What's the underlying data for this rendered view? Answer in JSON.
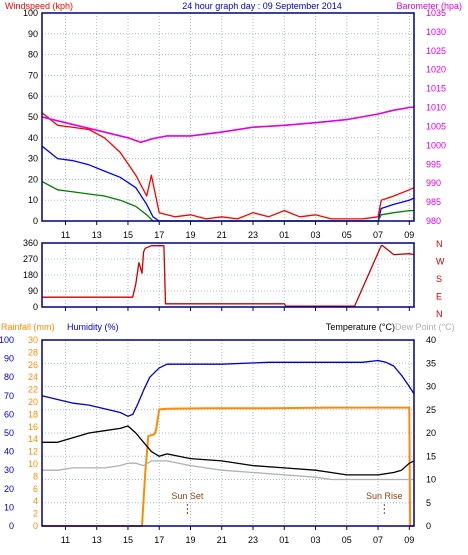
{
  "colors": {
    "background": "#ffffff",
    "frame": "#000080",
    "grid": "#a8b8d8",
    "speed_avg": "#0000ff",
    "speed_gust": "#ff0000",
    "speed_low": "#008000",
    "barometer": "#e000e0",
    "direction": "#cc0000",
    "rainfall": "#ff8c00",
    "humidity": "#0000cc",
    "temperature": "#000000",
    "dewpoint": "#b0b0b0",
    "event": "#8b4513"
  },
  "chart_data": [
    {
      "type": "line",
      "title": "24 hour graph day : 09 September 2014",
      "ylabel_left": "Windspeed (kph)",
      "ylabel_right": "Barometer (hpa)",
      "x_tick_labels": [
        "11",
        "13",
        "15",
        "17",
        "19",
        "21",
        "23",
        "01",
        "03",
        "05",
        "07",
        "09"
      ],
      "y_left_ticks": [
        "0",
        "10",
        "20",
        "30",
        "40",
        "50",
        "60",
        "70",
        "80",
        "90",
        "100"
      ],
      "y_right_ticks": [
        "980",
        "985",
        "990",
        "995",
        "1000",
        "1005",
        "1010",
        "1015",
        "1020",
        "1025",
        "1030",
        "1035"
      ],
      "ylim_left": [
        0,
        100
      ],
      "ylim_right": [
        980,
        1035
      ],
      "xlim_hours": [
        9.5,
        33.3
      ],
      "series": [
        {
          "key": "gust",
          "color": "speed_gust",
          "x": [
            9.5,
            10.5,
            11.5,
            12.5,
            13.5,
            14.5,
            15.5,
            16.2,
            16.5,
            17.0,
            18.0,
            19.0,
            20.0,
            21.0,
            22.0,
            23.0,
            24.0,
            25.0,
            26.0,
            27.0,
            28.0,
            29.0,
            30.0,
            31.0,
            31.2,
            32.0,
            33.0,
            33.3
          ],
          "y": [
            52,
            46,
            45,
            44,
            40,
            33,
            22,
            12,
            22,
            4,
            2,
            3,
            1,
            2,
            1,
            4,
            2,
            5,
            2,
            3,
            1,
            1,
            1,
            2,
            10,
            12,
            15,
            16
          ]
        },
        {
          "key": "average",
          "color": "speed_avg",
          "x": [
            9.5,
            10.5,
            11.5,
            12.5,
            13.5,
            14.5,
            15.5,
            16.2,
            16.6,
            17.0,
            19.0,
            21.0,
            23.0,
            25.0,
            27.0,
            29.0,
            31.0,
            31.2,
            32.0,
            33.0,
            33.3
          ],
          "y": [
            36,
            30,
            29,
            27,
            24,
            21,
            16,
            8,
            2,
            0,
            0,
            0,
            0,
            0,
            0,
            0,
            0,
            6,
            8,
            10,
            11
          ]
        },
        {
          "key": "low",
          "color": "speed_low",
          "x": [
            9.5,
            10.5,
            11.5,
            12.5,
            13.5,
            14.5,
            15.5,
            16.2,
            16.6,
            17.0,
            19.0,
            21.0,
            23.0,
            25.0,
            27.0,
            29.0,
            31.0,
            31.2,
            32.0,
            33.0,
            33.3
          ],
          "y": [
            19,
            15,
            14,
            13,
            12,
            10,
            7,
            3,
            0,
            0,
            0,
            0,
            0,
            0,
            0,
            0,
            0,
            3,
            4,
            5,
            5
          ]
        },
        {
          "key": "barometer",
          "axis": "right",
          "color": "barometer",
          "x": [
            9.5,
            11.0,
            13.0,
            15.0,
            15.8,
            16.6,
            17.5,
            19.0,
            21.0,
            23.0,
            25.0,
            27.0,
            29.0,
            31.0,
            32.0,
            33.0,
            33.3
          ],
          "y": [
            1007.5,
            1006.0,
            1004.0,
            1002.0,
            1000.8,
            1001.8,
            1002.5,
            1002.5,
            1003.5,
            1004.8,
            1005.3,
            1006.0,
            1006.8,
            1008.3,
            1009.3,
            1010.0,
            1010.1
          ]
        }
      ]
    },
    {
      "type": "line",
      "ylabel_right": [
        "N",
        "W",
        "S",
        "E",
        "N"
      ],
      "y_left_ticks": [
        "0",
        "90",
        "180",
        "270",
        "360"
      ],
      "ylim": [
        0,
        360
      ],
      "xlim_hours": [
        9.5,
        33.3
      ],
      "series": [
        {
          "key": "direction",
          "color": "direction",
          "x": [
            9.5,
            15.3,
            15.5,
            15.7,
            15.9,
            16.0,
            16.1,
            16.5,
            17.3,
            17.4,
            25.0,
            25.1,
            29.5,
            31.2,
            31.3,
            32.0,
            33.0,
            33.3
          ],
          "y": [
            55,
            55,
            130,
            250,
            190,
            310,
            330,
            345,
            345,
            18,
            18,
            5,
            5,
            345,
            345,
            295,
            300,
            295
          ]
        }
      ]
    },
    {
      "type": "line",
      "ylabel_left": [
        "Rainfall (mm)",
        "Humidity (%)"
      ],
      "ylabel_right": [
        "Temperature (°C)",
        "Dew Point (°C)"
      ],
      "y_humidity_ticks": [
        "0",
        "10",
        "20",
        "30",
        "40",
        "50",
        "60",
        "70",
        "80",
        "90",
        "100"
      ],
      "y_rain_ticks": [
        "0",
        "2",
        "4",
        "6",
        "8",
        "10",
        "12",
        "14",
        "16",
        "18",
        "20",
        "22",
        "24",
        "26",
        "28",
        "30"
      ],
      "y_temp_ticks": [
        "0",
        "5",
        "10",
        "15",
        "20",
        "25",
        "30",
        "35",
        "40"
      ],
      "ylim_humidity": [
        0,
        100
      ],
      "ylim_rain": [
        0,
        30
      ],
      "ylim_temp": [
        0,
        40
      ],
      "xlim_hours": [
        9.5,
        33.3
      ],
      "annotations": [
        {
          "text": "Sun Set",
          "x_hour": 18.8
        },
        {
          "text": "Sun Rise",
          "x_hour": 31.4
        }
      ],
      "series": [
        {
          "key": "humidity",
          "color": "humidity",
          "x": [
            9.5,
            10.5,
            11.5,
            12.5,
            13.5,
            14.5,
            15.0,
            15.3,
            15.6,
            16.0,
            16.4,
            17.0,
            17.5,
            18.5,
            21.0,
            24.0,
            27.0,
            30.0,
            31.0,
            31.5,
            32.0,
            32.5,
            33.0,
            33.3
          ],
          "y": [
            70,
            68,
            66,
            65,
            63,
            61,
            59,
            60,
            65,
            73,
            80,
            85,
            87,
            87,
            87,
            88,
            88,
            88,
            89,
            88,
            86,
            81,
            75,
            71
          ]
        },
        {
          "key": "rainfall",
          "axis": "rain",
          "color": "rainfall",
          "x": [
            9.5,
            15.9,
            16.1,
            16.3,
            16.7,
            16.8,
            17.0,
            17.5,
            20.0,
            24.0,
            28.0,
            32.0,
            33.0,
            33.05,
            33.3
          ],
          "y": [
            0,
            0,
            8.5,
            14.5,
            14.8,
            15.5,
            18.8,
            18.9,
            19.0,
            19.0,
            19.1,
            19.1,
            19.1,
            0,
            0
          ]
        },
        {
          "key": "temperature",
          "axis": "temp",
          "color": "temperature",
          "x": [
            9.5,
            10.5,
            11.5,
            12.5,
            13.5,
            14.5,
            15.0,
            15.5,
            16.0,
            16.5,
            17.0,
            17.5,
            19.0,
            21.0,
            23.0,
            25.0,
            27.0,
            28.0,
            29.0,
            30.0,
            31.0,
            32.0,
            32.5,
            33.0,
            33.3
          ],
          "y": [
            18,
            18,
            19,
            20,
            20.5,
            21,
            21.5,
            20,
            18,
            16,
            15,
            15.5,
            14.5,
            14,
            13,
            12.5,
            12,
            11.5,
            11,
            11,
            11,
            11.5,
            12,
            13.5,
            14
          ]
        },
        {
          "key": "dewpoint",
          "axis": "temp",
          "color": "dewpoint",
          "x": [
            9.5,
            10.5,
            11.5,
            12.5,
            13.5,
            14.5,
            15.0,
            15.5,
            16.0,
            16.5,
            17.0,
            17.5,
            19.0,
            21.0,
            23.0,
            25.0,
            27.0,
            28.0,
            29.0,
            30.0,
            31.0,
            32.0,
            32.5,
            33.0,
            33.3
          ],
          "y": [
            12,
            12,
            12.5,
            12.5,
            12.5,
            13,
            13.5,
            13.5,
            13,
            14,
            14,
            14,
            13,
            12,
            11.5,
            11,
            10.5,
            10,
            10,
            10,
            10,
            10,
            10,
            10,
            10
          ]
        }
      ]
    }
  ]
}
